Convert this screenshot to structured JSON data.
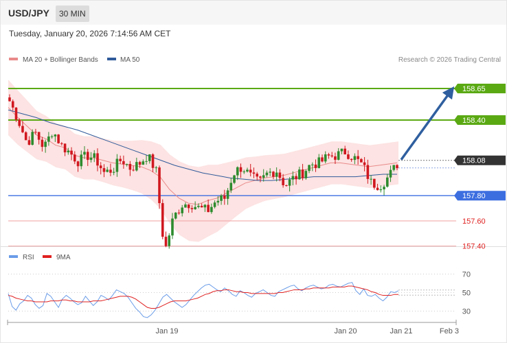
{
  "header": {
    "symbol": "USD/JPY",
    "timeframe": "30 MIN",
    "datetime": "Tuesday, January 20, 2026 7:14:56 AM CET"
  },
  "legend": {
    "ma20": "MA 20 + Bollinger Bands",
    "ma50": "MA 50",
    "copyright": "Research © 2026 Trading Central"
  },
  "rsi_legend": {
    "rsi": "RSI",
    "ma9": "9MA"
  },
  "colors": {
    "green_level": "#5aa913",
    "blue_level": "#3c6ee0",
    "red_level": "#f0a0a0",
    "current": "#333333",
    "up_candle": "#2e8b2e",
    "down_candle": "#d0181f",
    "bollinger_fill": "#fde3e3",
    "ma20": "#e98a8a",
    "ma50": "#2f5a9a",
    "arrow": "#2f5f9f",
    "rsi": "#6a9ce8",
    "rsi_ma": "#e02020"
  },
  "chart_data": [
    {
      "type": "candlestick",
      "title": "USD/JPY 30 MIN",
      "ylim": [
        157.35,
        158.72
      ],
      "levels": [
        {
          "value": 158.65,
          "label": "158.65",
          "kind": "resistance"
        },
        {
          "value": 158.4,
          "label": "158.40",
          "kind": "resistance"
        },
        {
          "value": 158.08,
          "label": "158.08",
          "kind": "current"
        },
        {
          "value": 157.8,
          "label": "157.80",
          "kind": "pivot"
        },
        {
          "value": 157.6,
          "label": "157.60",
          "kind": "support"
        },
        {
          "value": 157.4,
          "label": "157.40",
          "kind": "support"
        }
      ],
      "forecast": {
        "from": 158.08,
        "to": 158.65
      },
      "close_path": [
        158.55,
        158.4,
        158.22,
        158.3,
        158.18,
        158.32,
        158.2,
        158.14,
        158.07,
        158.12,
        158.09,
        157.98,
        158.01,
        158.09,
        158.02,
        158.05,
        158.12,
        158.0,
        157.35,
        157.62,
        157.73,
        157.74,
        157.7,
        157.68,
        157.76,
        157.78,
        157.98,
        158.03,
        157.95,
        157.9,
        157.98,
        158.0,
        157.88,
        157.94,
        157.98,
        158.05,
        158.06,
        158.11,
        158.12,
        158.15,
        158.1,
        158.04,
        157.9,
        157.88,
        157.95,
        158.05
      ],
      "ma20": [
        158.5,
        158.42,
        158.35,
        158.28,
        158.25,
        158.2,
        158.18,
        158.12,
        158.1,
        158.1,
        158.08,
        158.06,
        158.05,
        158.04,
        158.03,
        158.0,
        157.95,
        157.85,
        157.78,
        157.74,
        157.73,
        157.76,
        157.78,
        157.82,
        157.86,
        157.9,
        157.92,
        157.94,
        157.95,
        157.96,
        157.98,
        158.0,
        158.02,
        158.04,
        158.06,
        158.06,
        158.05,
        158.04,
        158.03,
        158.04,
        158.05,
        158.06
      ],
      "ma50": [
        158.48,
        158.45,
        158.42,
        158.38,
        158.35,
        158.32,
        158.28,
        158.24,
        158.2,
        158.16,
        158.12,
        158.08,
        158.04,
        158.01,
        157.98,
        157.96,
        157.94,
        157.93,
        157.92,
        157.92,
        157.93,
        157.94,
        157.95,
        157.95,
        157.95,
        157.95,
        157.96,
        157.97,
        157.97
      ],
      "xticks": [
        "Jan 19",
        "Jan 20",
        "Jan 21",
        "Feb 3"
      ]
    },
    {
      "type": "line",
      "title": "RSI",
      "ylim": [
        20,
        80
      ],
      "yticks": [
        70,
        50,
        30
      ],
      "series": [
        {
          "name": "RSI",
          "values": [
            49,
            35,
            31,
            38,
            41,
            47,
            44,
            37,
            33,
            36,
            49,
            46,
            40,
            34,
            43,
            47,
            44,
            40,
            37,
            39,
            46,
            41,
            36,
            40,
            47,
            45,
            42,
            47,
            53,
            51,
            49,
            45,
            39,
            33,
            29,
            24,
            23,
            26,
            31,
            38,
            45,
            48,
            44,
            40,
            37,
            34,
            37,
            42,
            47,
            51,
            55,
            58,
            59,
            56,
            53,
            51,
            55,
            52,
            48,
            46,
            52,
            50,
            47,
            45,
            49,
            51,
            53,
            50,
            47,
            46,
            51,
            53,
            55,
            57,
            58,
            54,
            52,
            55,
            57,
            58,
            56,
            54,
            55,
            58,
            59,
            57,
            56,
            58,
            60,
            61,
            52,
            48,
            54,
            47,
            46,
            48,
            44,
            41,
            45,
            51,
            50,
            52
          ]
        },
        {
          "name": "9MA",
          "values": [
            47,
            46,
            44,
            43,
            42,
            41,
            41,
            40,
            40,
            40,
            40,
            41,
            41,
            41,
            42,
            42,
            41,
            41,
            40,
            40,
            40,
            40,
            41,
            41,
            41,
            42,
            43,
            44,
            45,
            46,
            46,
            46,
            45,
            43,
            40,
            37,
            34,
            33,
            33,
            34,
            36,
            38,
            40,
            41,
            41,
            41,
            41,
            42,
            43,
            44,
            46,
            48,
            49,
            51,
            52,
            52,
            53,
            53,
            52,
            51,
            51,
            50,
            50,
            49,
            49,
            49,
            49,
            49,
            49,
            49,
            50,
            50,
            51,
            52,
            53,
            53,
            53,
            54,
            54,
            55,
            55,
            55,
            55,
            55,
            56,
            56,
            56,
            56,
            57,
            57,
            56,
            55,
            54,
            53,
            51,
            50,
            48,
            47,
            47,
            47,
            48,
            48
          ]
        }
      ],
      "xticks": [
        "Jan 19",
        "Jan 20",
        "Jan 21",
        "Feb 3"
      ]
    }
  ]
}
